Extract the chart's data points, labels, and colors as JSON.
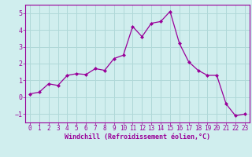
{
  "x": [
    0,
    1,
    2,
    3,
    4,
    5,
    6,
    7,
    8,
    9,
    10,
    11,
    12,
    13,
    14,
    15,
    16,
    17,
    18,
    19,
    20,
    21,
    22,
    23
  ],
  "y": [
    0.2,
    0.3,
    0.8,
    0.7,
    1.3,
    1.4,
    1.35,
    1.7,
    1.6,
    2.3,
    2.5,
    4.2,
    3.6,
    4.4,
    4.5,
    5.1,
    3.2,
    2.1,
    1.6,
    1.3,
    1.3,
    -0.4,
    -1.1,
    -1.0
  ],
  "line_color": "#990099",
  "marker": "D",
  "marker_size": 2.0,
  "bg_color": "#d0eeee",
  "grid_color": "#b0d8d8",
  "xlabel": "Windchill (Refroidissement éolien,°C)",
  "xlabel_color": "#990099",
  "xlim": [
    -0.5,
    23.5
  ],
  "ylim": [
    -1.5,
    5.5
  ],
  "yticks": [
    -1,
    0,
    1,
    2,
    3,
    4,
    5
  ],
  "xticks": [
    0,
    1,
    2,
    3,
    4,
    5,
    6,
    7,
    8,
    9,
    10,
    11,
    12,
    13,
    14,
    15,
    16,
    17,
    18,
    19,
    20,
    21,
    22,
    23
  ],
  "tick_fontsize": 5.5,
  "xlabel_fontsize": 6.0,
  "ylabel_fontsize": 6.0
}
